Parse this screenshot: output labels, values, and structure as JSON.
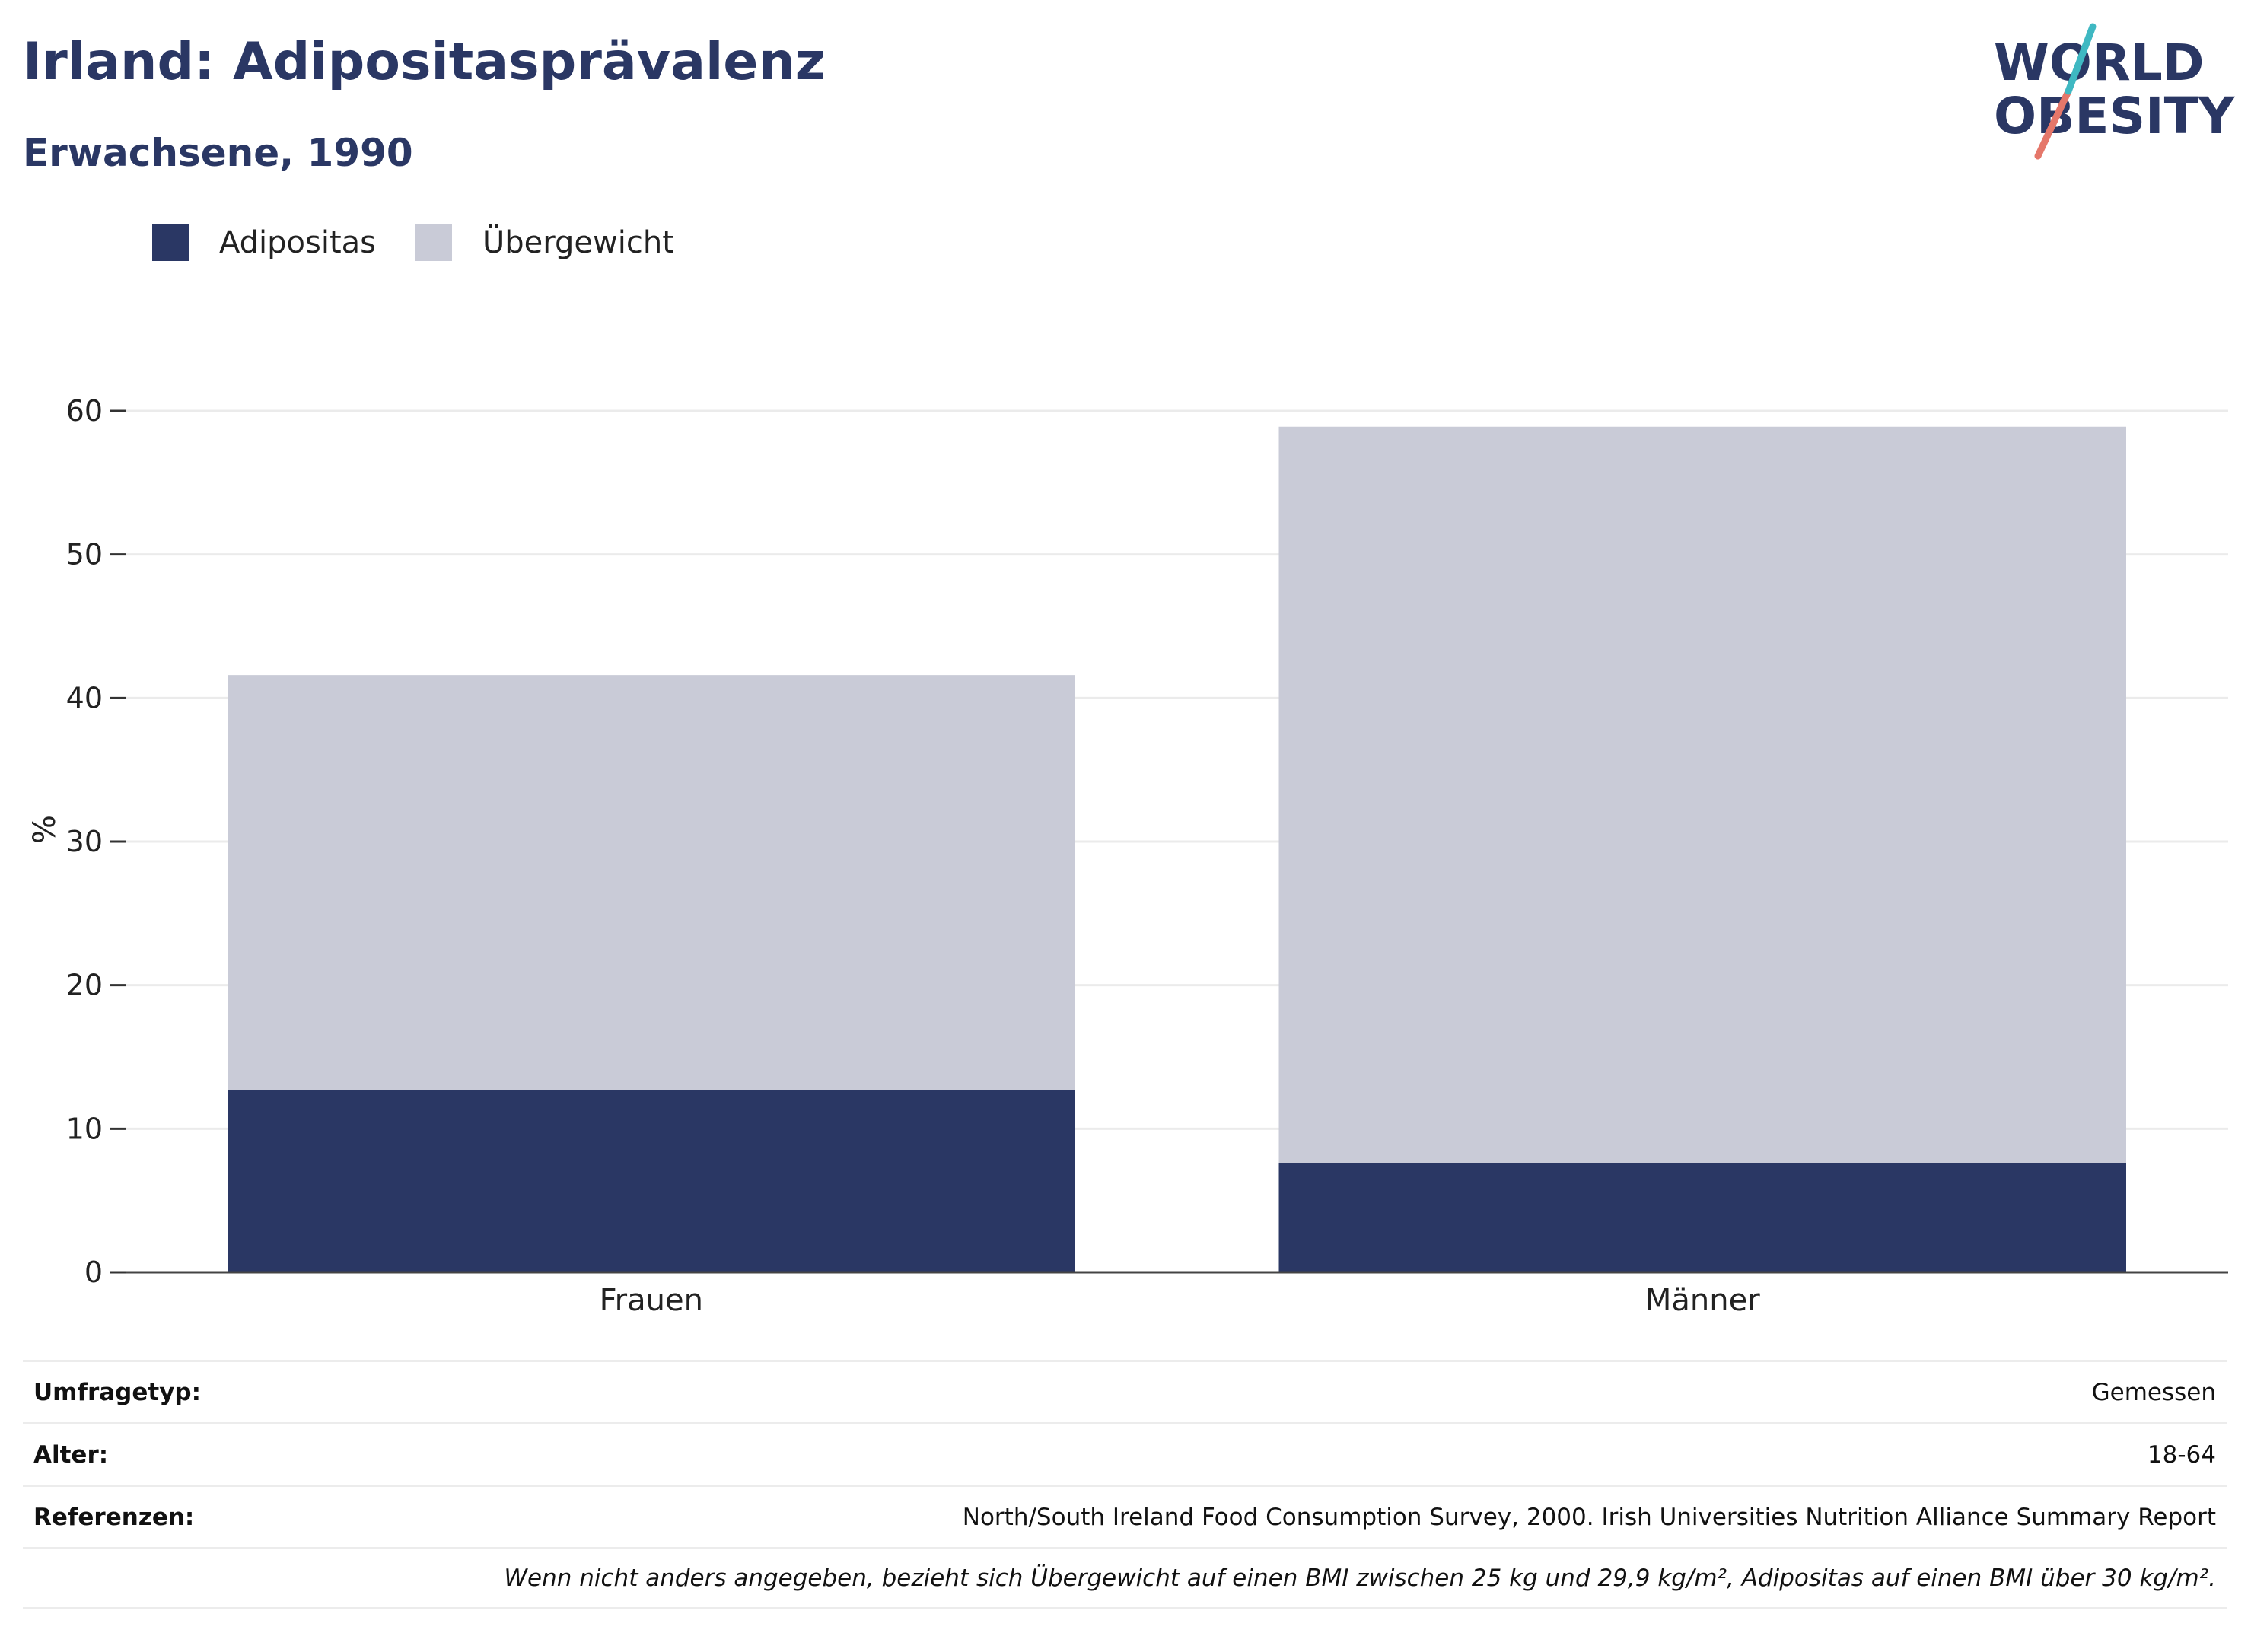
{
  "header": {
    "title": "Irland: Adipositasprävalenz",
    "subtitle": "Erwachsene, 1990"
  },
  "logo": {
    "line1": "WORLD",
    "line2": "OBESITY"
  },
  "legend": [
    {
      "label": "Adipositas",
      "color": "#2a3764"
    },
    {
      "label": "Übergewicht",
      "color": "#c9cbd7"
    }
  ],
  "chart_data": {
    "type": "bar",
    "stacked": true,
    "categories": [
      "Frauen",
      "Männer"
    ],
    "series": [
      {
        "name": "Adipositas",
        "values": [
          12.7,
          7.6
        ],
        "color": "#2a3764"
      },
      {
        "name": "Übergewicht",
        "values": [
          28.9,
          51.3
        ],
        "color": "#c9cbd7"
      }
    ],
    "ylabel": "%",
    "ylim": [
      0,
      60
    ],
    "yticks": [
      0,
      10,
      20,
      30,
      40,
      50,
      60
    ],
    "grid": true,
    "legend_position": "top-left"
  },
  "info": [
    {
      "label": "Umfragetyp:",
      "value": "Gemessen"
    },
    {
      "label": "Alter:",
      "value": "18-64"
    },
    {
      "label": "Referenzen:",
      "value": "North/South Ireland Food Consumption Survey, 2000. Irish Universities Nutrition Alliance Summary Report"
    }
  ],
  "note": "Wenn nicht anders angegeben, bezieht sich Übergewicht auf einen BMI zwischen 25 kg und 29,9 kg/m², Adipositas auf einen BMI über 30 kg/m²."
}
